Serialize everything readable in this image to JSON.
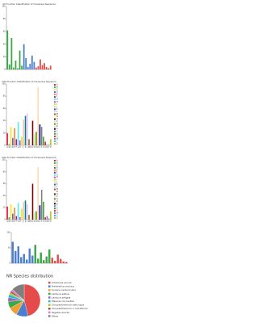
{
  "chart_data": [
    {
      "type": "bar",
      "title": "GO Function Classification of Consensus Sequence",
      "categories": [
        null,
        null,
        null,
        null,
        null,
        null,
        null,
        null,
        null,
        null,
        null,
        null,
        null,
        null,
        null,
        null,
        null,
        null,
        null,
        null,
        null,
        null
      ],
      "values": [
        62,
        8,
        50,
        3,
        14,
        2,
        30,
        6,
        40,
        18,
        4,
        9,
        22,
        12,
        3,
        5,
        16,
        7,
        10,
        4,
        2,
        6
      ],
      "colors": [
        "#3aa845",
        "#3aa845",
        "#3aa845",
        "#3aa845",
        "#3aa845",
        "#3aa845",
        "#3aa845",
        "#3aa845",
        "#4a7fd0",
        "#4a7fd0",
        "#4a7fd0",
        "#4a7fd0",
        "#4a7fd0",
        "#4a7fd0",
        "#e05050",
        "#e05050",
        "#e05050",
        "#e05050",
        "#e05050",
        "#e05050",
        "#e05050",
        "#e05050"
      ],
      "ylim": [
        0,
        100
      ],
      "yticks": [
        0,
        20,
        40,
        60,
        80,
        100
      ]
    },
    {
      "type": "bar",
      "title": "COG Function Classification of Consensus Sequence",
      "categories": [
        "A",
        "B",
        "C",
        "D",
        "E",
        "F",
        "G",
        "H",
        "I",
        "J",
        "K",
        "L",
        "M",
        "N",
        "O",
        "P",
        "Q",
        "R",
        "S",
        "T",
        "U",
        "V",
        "W",
        "Y",
        "Z"
      ],
      "values": [
        20,
        2,
        30,
        12,
        28,
        10,
        38,
        8,
        14,
        42,
        48,
        52,
        10,
        2,
        40,
        18,
        22,
        95,
        34,
        30,
        14,
        6,
        1,
        1,
        10
      ],
      "colors": [
        "#e6194b",
        "#3cb44b",
        "#ffe119",
        "#4363d8",
        "#f58231",
        "#911eb4",
        "#46f0f0",
        "#f032e6",
        "#bcf60c",
        "#fabebe",
        "#008080",
        "#e6beff",
        "#9a6324",
        "#fffac8",
        "#800000",
        "#aaffc3",
        "#808000",
        "#ffd8b1",
        "#000075",
        "#808080",
        "#2ca02c",
        "#d62728",
        "#9467bd",
        "#17becf",
        "#bcbd22"
      ],
      "ylim": [
        0,
        100
      ],
      "yticks": [
        0,
        20,
        40,
        60,
        80,
        100
      ]
    },
    {
      "type": "bar",
      "title": "KOG Function Classification of Consensus Sequence",
      "categories": [
        "A",
        "B",
        "C",
        "D",
        "E",
        "F",
        "G",
        "H",
        "I",
        "J",
        "K",
        "L",
        "M",
        "N",
        "O",
        "P",
        "Q",
        "R",
        "S",
        "T",
        "U",
        "V",
        "W",
        "Y",
        "Z"
      ],
      "values": [
        22,
        4,
        26,
        10,
        20,
        6,
        28,
        4,
        18,
        30,
        32,
        26,
        8,
        1,
        60,
        12,
        14,
        88,
        24,
        50,
        30,
        4,
        6,
        2,
        14
      ],
      "colors": [
        "#e6194b",
        "#3cb44b",
        "#ffe119",
        "#4363d8",
        "#f58231",
        "#911eb4",
        "#46f0f0",
        "#f032e6",
        "#bcf60c",
        "#fabebe",
        "#008080",
        "#e6beff",
        "#9a6324",
        "#fffac8",
        "#800000",
        "#aaffc3",
        "#808000",
        "#ffd8b1",
        "#000075",
        "#808080",
        "#2ca02c",
        "#d62728",
        "#9467bd",
        "#17becf",
        "#bcbd22"
      ],
      "ylim": [
        0,
        100
      ],
      "yticks": [
        0,
        20,
        40,
        60,
        80,
        100
      ]
    },
    {
      "type": "bar",
      "categories": [
        null,
        null,
        null,
        null,
        null,
        null,
        null,
        null,
        null,
        null,
        null,
        null,
        null,
        null,
        null,
        null,
        null,
        null,
        null,
        null
      ],
      "values": [
        70,
        40,
        55,
        20,
        30,
        12,
        48,
        25,
        60,
        15,
        35,
        10,
        22,
        45,
        18,
        8,
        28,
        14,
        6,
        4
      ],
      "colors": [
        "#4a7fd0",
        "#4a7fd0",
        "#4a7fd0",
        "#4a7fd0",
        "#4a7fd0",
        "#4a7fd0",
        "#4a7fd0",
        "#4a7fd0",
        "#3aa845",
        "#3aa845",
        "#3aa845",
        "#3aa845",
        "#3aa845",
        "#3aa845",
        "#e05050",
        "#e05050",
        "#e05050",
        "#e05050",
        "#e05050",
        "#e05050"
      ],
      "ylim": [
        0,
        100
      ],
      "yticks": [
        0,
        50,
        100
      ]
    },
    {
      "type": "pie",
      "title": "NR Species distribution",
      "categories": [
        "Artemisia annua",
        "Helianthus annuus",
        "Cynara cardunculus",
        "Lactuca sativa",
        "Lactuca saligna",
        "Mikania micrantha",
        "Chrysanthemum seticuspe",
        "Chrysanthemum x morifolium",
        "Tagetes erecta",
        "Other"
      ],
      "values": [
        46,
        12,
        9,
        7,
        4,
        3,
        2,
        2,
        2,
        13
      ],
      "colors": [
        "#e64b4b",
        "#4a7fd0",
        "#f0a030",
        "#3aa845",
        "#9467bd",
        "#17becf",
        "#bcbd22",
        "#8c564b",
        "#e377c2",
        "#7f7f7f"
      ]
    }
  ]
}
